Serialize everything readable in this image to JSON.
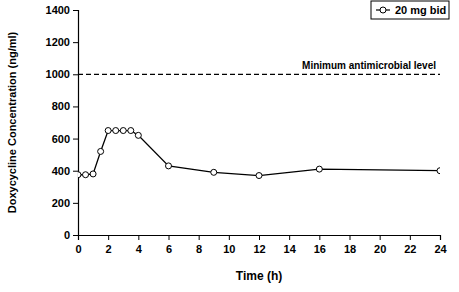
{
  "chart_data": {
    "type": "line",
    "x_label": "Time (h)",
    "y_label": "Doxycycline Concentration (ng/ml)",
    "x": [
      0,
      0.5,
      1,
      1.5,
      2,
      2.5,
      3,
      3.5,
      4,
      6,
      9,
      12,
      16,
      24
    ],
    "series": [
      {
        "name": "20 mg bid",
        "color": "#000000",
        "marker": "circle-open",
        "line_style": "solid",
        "values": [
          375,
          375,
          380,
          520,
          650,
          650,
          650,
          650,
          620,
          430,
          390,
          370,
          410,
          400
        ]
      }
    ],
    "reference_lines": [
      {
        "y": 1000,
        "label": "Minimum antimicrobial level",
        "line_style": "dashed"
      }
    ],
    "xlim": [
      0,
      24
    ],
    "xticks": [
      0,
      2,
      4,
      6,
      8,
      10,
      12,
      14,
      16,
      18,
      20,
      22,
      24
    ],
    "ylim": [
      0,
      1400
    ],
    "yticks": [
      0,
      200,
      400,
      600,
      800,
      1000,
      1200,
      1400
    ],
    "grid": false,
    "legend": "upper right"
  }
}
